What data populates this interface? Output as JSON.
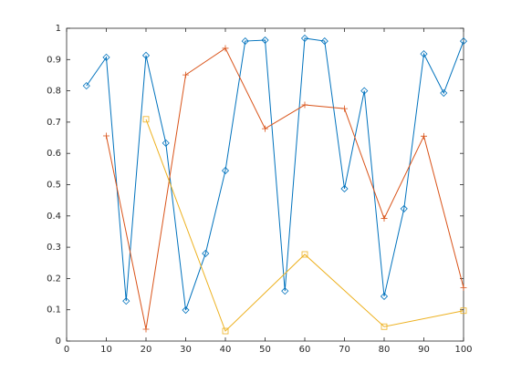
{
  "chart_data": {
    "type": "line",
    "xlim": [
      0,
      100
    ],
    "ylim": [
      0,
      1
    ],
    "xticks": [
      0,
      10,
      20,
      30,
      40,
      50,
      60,
      70,
      80,
      90,
      100
    ],
    "yticks": [
      0,
      0.1,
      0.2,
      0.3,
      0.4,
      0.5,
      0.6,
      0.7,
      0.8,
      0.9,
      1
    ],
    "series": [
      {
        "color": "#0072bd",
        "marker": "diamond",
        "x": [
          5,
          10,
          15,
          20,
          25,
          30,
          35,
          40,
          45,
          50,
          55,
          60,
          65,
          70,
          75,
          80,
          85,
          90,
          95,
          100
        ],
        "values": [
          0.816,
          0.907,
          0.128,
          0.913,
          0.633,
          0.099,
          0.28,
          0.545,
          0.959,
          0.962,
          0.16,
          0.968,
          0.959,
          0.487,
          0.8,
          0.143,
          0.423,
          0.918,
          0.793,
          0.959
        ]
      },
      {
        "color": "#d95319",
        "marker": "plus",
        "x": [
          10,
          20,
          30,
          40,
          50,
          60,
          70,
          80,
          90,
          100
        ],
        "values": [
          0.656,
          0.038,
          0.851,
          0.936,
          0.679,
          0.755,
          0.743,
          0.392,
          0.655,
          0.171
        ]
      },
      {
        "color": "#edb120",
        "marker": "square",
        "x": [
          20,
          40,
          60,
          80,
          100
        ],
        "values": [
          0.709,
          0.032,
          0.277,
          0.046,
          0.097
        ]
      }
    ]
  }
}
